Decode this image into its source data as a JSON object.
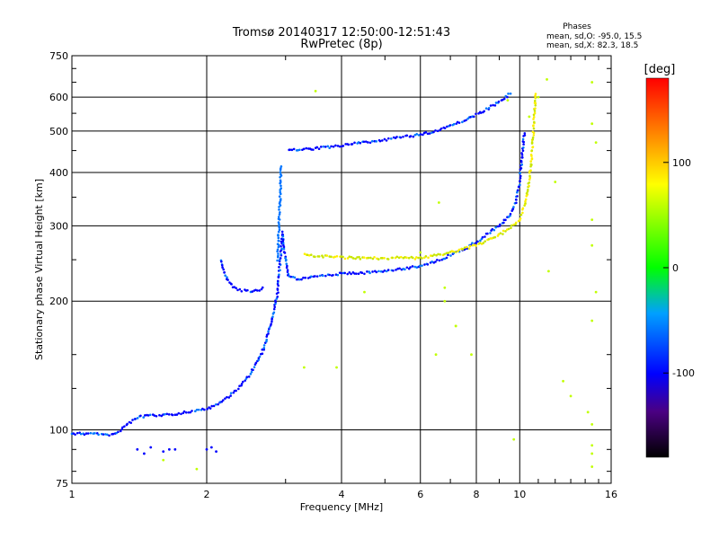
{
  "chart_data": {
    "type": "scatter",
    "title": "Tromsø 20140317 12:50:00-12:51:43",
    "subtitle": "RwPretec (8p)",
    "xlabel": "Frequency [MHz]",
    "ylabel": "Stationary phase Virtual Height [km]",
    "x_scale": "log",
    "y_scale": "log",
    "xlim": [
      1,
      16
    ],
    "ylim": [
      75,
      750
    ],
    "x_ticks": [
      1,
      2,
      4,
      6,
      8,
      10,
      16
    ],
    "y_ticks": [
      75,
      100,
      200,
      300,
      400,
      500,
      600,
      750
    ],
    "grid": true,
    "phases_box": {
      "title": "Phases",
      "line_o": "mean, sd,O:  -95.0, 15.5",
      "line_x": "mean, sd,X:   82.3, 18.5"
    },
    "colorbar": {
      "label": "[deg]",
      "range": [
        -180,
        180
      ],
      "ticks": [
        100,
        0,
        -100
      ]
    },
    "series": [
      {
        "kind": "o-trace-low",
        "phase": -100,
        "points": [
          [
            1.0,
            98
          ],
          [
            1.05,
            98
          ],
          [
            1.1,
            98
          ],
          [
            1.15,
            98
          ],
          [
            1.2,
            97
          ],
          [
            1.25,
            98
          ],
          [
            1.4,
            107
          ],
          [
            1.5,
            108
          ],
          [
            1.6,
            108
          ],
          [
            1.7,
            109
          ],
          [
            1.8,
            110
          ],
          [
            1.9,
            111
          ],
          [
            2.0,
            112
          ],
          [
            2.1,
            114
          ],
          [
            2.2,
            118
          ],
          [
            2.35,
            125
          ],
          [
            2.5,
            135
          ],
          [
            2.65,
            150
          ],
          [
            2.78,
            175
          ],
          [
            2.88,
            210
          ],
          [
            2.92,
            250
          ],
          [
            2.95,
            290
          ],
          [
            3.0,
            250
          ],
          [
            3.05,
            228
          ],
          [
            3.2,
            225
          ],
          [
            3.5,
            228
          ],
          [
            4.0,
            232
          ],
          [
            4.5,
            233
          ],
          [
            5.0,
            235
          ],
          [
            5.5,
            238
          ],
          [
            6.0,
            242
          ],
          [
            6.5,
            248
          ],
          [
            7.0,
            256
          ],
          [
            7.5,
            264
          ],
          [
            8.0,
            275
          ],
          [
            8.5,
            288
          ],
          [
            9.0,
            300
          ],
          [
            9.5,
            318
          ],
          [
            9.8,
            340
          ],
          [
            10.0,
            380
          ],
          [
            10.15,
            450
          ],
          [
            10.25,
            500
          ]
        ]
      },
      {
        "kind": "x-trace-low",
        "phase": 100,
        "points": [
          [
            3.3,
            258
          ],
          [
            3.5,
            255
          ],
          [
            4.0,
            253
          ],
          [
            4.5,
            252
          ],
          [
            5.0,
            252
          ],
          [
            5.5,
            253
          ],
          [
            6.0,
            252
          ],
          [
            7.0,
            260
          ],
          [
            8.0,
            270
          ],
          [
            9.0,
            285
          ],
          [
            10.0,
            310
          ],
          [
            10.3,
            340
          ],
          [
            10.5,
            380
          ],
          [
            10.6,
            420
          ],
          [
            10.7,
            480
          ],
          [
            10.8,
            560
          ],
          [
            10.85,
            620
          ]
        ]
      },
      {
        "kind": "o-trace-high",
        "phase": -100,
        "points": [
          [
            3.05,
            450
          ],
          [
            3.5,
            455
          ],
          [
            4.0,
            462
          ],
          [
            4.5,
            470
          ],
          [
            5.0,
            477
          ],
          [
            5.5,
            484
          ],
          [
            6.0,
            490
          ],
          [
            6.5,
            500
          ],
          [
            7.0,
            515
          ],
          [
            7.5,
            530
          ],
          [
            8.0,
            545
          ],
          [
            8.5,
            565
          ],
          [
            9.0,
            585
          ],
          [
            9.3,
            600
          ],
          [
            9.6,
            615
          ]
        ]
      },
      {
        "kind": "spur-210",
        "phase": -100,
        "points": [
          [
            2.15,
            250
          ],
          [
            2.2,
            230
          ],
          [
            2.3,
            215
          ],
          [
            2.4,
            212
          ],
          [
            2.5,
            211
          ],
          [
            2.6,
            212
          ],
          [
            2.7,
            215
          ]
        ]
      },
      {
        "kind": "near-vertical-cusp",
        "phase": -60,
        "points": [
          [
            2.88,
            250
          ],
          [
            2.9,
            300
          ],
          [
            2.92,
            360
          ],
          [
            2.93,
            420
          ]
        ]
      },
      {
        "kind": "low-echoes",
        "phase": -100,
        "points": [
          [
            1.4,
            90
          ],
          [
            1.45,
            88
          ],
          [
            1.5,
            91
          ],
          [
            1.6,
            89
          ],
          [
            1.65,
            90
          ],
          [
            1.7,
            90
          ],
          [
            2.0,
            90
          ],
          [
            2.05,
            91
          ],
          [
            2.1,
            89
          ]
        ]
      },
      {
        "kind": "scattered",
        "phase": 60,
        "points": [
          [
            14.5,
            650
          ],
          [
            14.5,
            520
          ],
          [
            14.5,
            310
          ],
          [
            14.5,
            270
          ],
          [
            14.8,
            210
          ],
          [
            14.5,
            180
          ],
          [
            12.5,
            130
          ],
          [
            13,
            120
          ],
          [
            14.2,
            110
          ],
          [
            14.5,
            103
          ],
          [
            9.7,
            95
          ],
          [
            14.5,
            92
          ],
          [
            14.5,
            88
          ],
          [
            14.5,
            82
          ],
          [
            3.3,
            140
          ],
          [
            3.9,
            140
          ],
          [
            6.6,
            340
          ],
          [
            7.2,
            175
          ],
          [
            6.8,
            215
          ],
          [
            4.5,
            210
          ],
          [
            3.5,
            620
          ],
          [
            7.8,
            150
          ],
          [
            7.2,
            175
          ],
          [
            11.5,
            660
          ],
          [
            11,
            600
          ],
          [
            10.5,
            540
          ],
          [
            12,
            380
          ],
          [
            6.0,
            260
          ],
          [
            6.5,
            150
          ],
          [
            6.8,
            200
          ],
          [
            9.4,
            590
          ],
          [
            11.6,
            235
          ],
          [
            14.8,
            470
          ],
          [
            1.6,
            85
          ],
          [
            1.9,
            81
          ]
        ]
      }
    ]
  }
}
